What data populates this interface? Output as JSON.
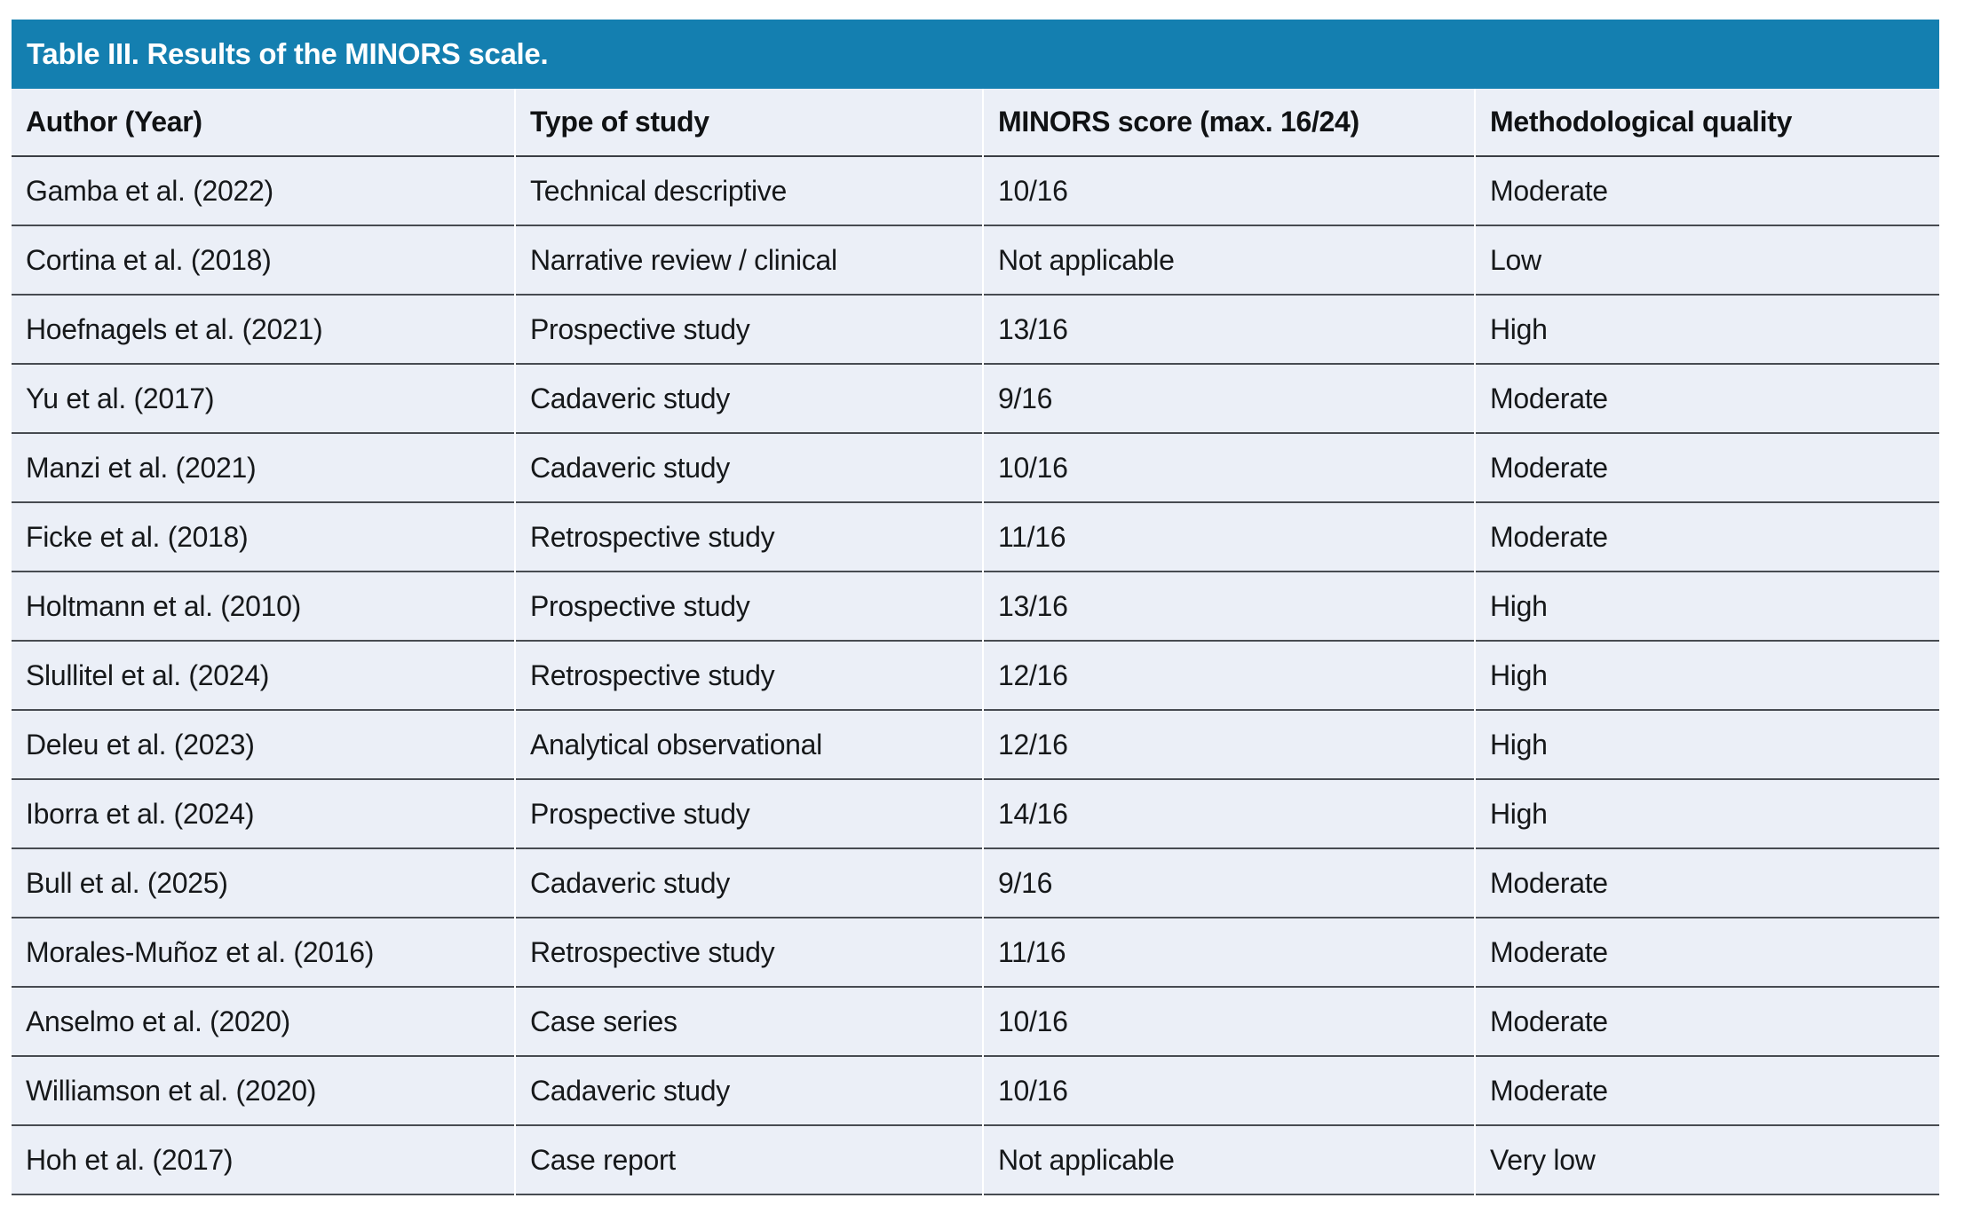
{
  "colors": {
    "accent_blue": "#147fb0",
    "row_background": "#ebeff7",
    "rule_gray": "#474b51",
    "title_text": "#ffffff",
    "body_text": "#16181a"
  },
  "table": {
    "title": "Table III. Results of the MINORS scale.",
    "columns": [
      "Author (Year)",
      "Type of study",
      "MINORS score (max. 16/24)",
      "Methodological quality"
    ],
    "rows": [
      [
        "Gamba et al. (2022)",
        "Technical descriptive",
        "10/16",
        "Moderate"
      ],
      [
        "Cortina et al. (2018)",
        "Narrative review / clinical",
        "Not applicable",
        "Low"
      ],
      [
        "Hoefnagels et al. (2021)",
        "Prospective study",
        "13/16",
        "High"
      ],
      [
        "Yu et al. (2017)",
        "Cadaveric study",
        "9/16",
        "Moderate"
      ],
      [
        "Manzi et al. (2021)",
        "Cadaveric study",
        "10/16",
        "Moderate"
      ],
      [
        "Ficke et al. (2018)",
        "Retrospective study",
        "11/16",
        "Moderate"
      ],
      [
        "Holtmann et al. (2010)",
        "Prospective study",
        "13/16",
        "High"
      ],
      [
        "Slullitel et al. (2024)",
        "Retrospective study",
        "12/16",
        "High"
      ],
      [
        "Deleu et al. (2023)",
        "Analytical observational",
        "12/16",
        "High"
      ],
      [
        "Iborra et al. (2024)",
        "Prospective study",
        "14/16",
        "High"
      ],
      [
        "Bull et al. (2025)",
        "Cadaveric study",
        "9/16",
        "Moderate"
      ],
      [
        "Morales-Muñoz et al. (2016)",
        "Retrospective study",
        "11/16",
        "Moderate"
      ],
      [
        "Anselmo et al. (2020)",
        "Case series",
        "10/16",
        "Moderate"
      ],
      [
        "Williamson et al. (2020)",
        "Cadaveric study",
        "10/16",
        "Moderate"
      ],
      [
        "Hoh et al. (2017)",
        "Case report",
        "Not applicable",
        "Very low"
      ]
    ]
  }
}
